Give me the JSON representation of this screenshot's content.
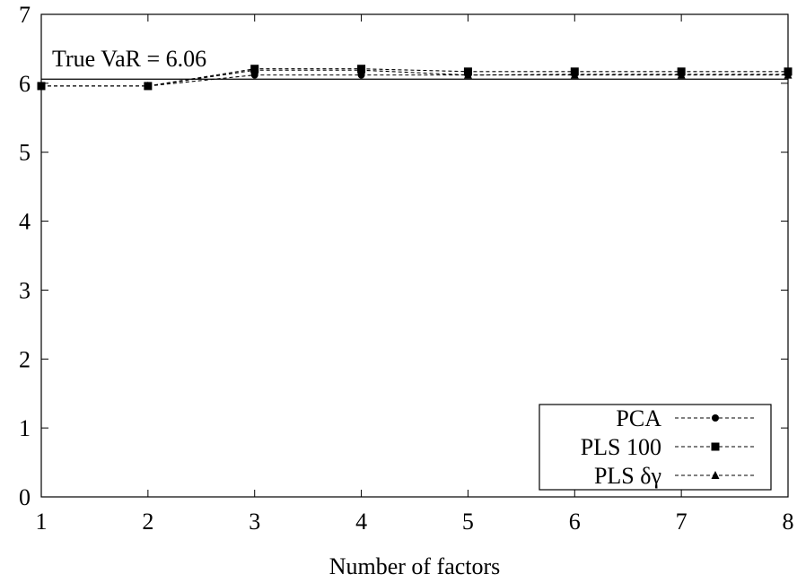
{
  "chart_data": {
    "type": "line",
    "xlabel": "Number of factors",
    "ylabel": "",
    "xlim": [
      1,
      8
    ],
    "ylim": [
      0,
      7
    ],
    "x_ticks": [
      "1",
      "2",
      "3",
      "4",
      "5",
      "6",
      "7",
      "8"
    ],
    "y_ticks": [
      "0",
      "1",
      "2",
      "3",
      "4",
      "5",
      "6",
      "7"
    ],
    "grid": false,
    "legend_position": "bottom-right",
    "annotation": "True VaR = 6.06",
    "reference_line": 6.06,
    "x": [
      1,
      2,
      3,
      4,
      5,
      6,
      7,
      8
    ],
    "series": [
      {
        "name": "PCA",
        "marker": "circle",
        "values": [
          5.96,
          5.96,
          6.12,
          6.12,
          6.12,
          6.13,
          6.13,
          6.13
        ]
      },
      {
        "name": "PLS 100",
        "marker": "square",
        "values": [
          5.96,
          5.96,
          6.21,
          6.21,
          6.17,
          6.17,
          6.17,
          6.17
        ]
      },
      {
        "name": "PLS δγ",
        "marker": "triangle",
        "values": [
          5.96,
          5.96,
          6.19,
          6.19,
          6.12,
          6.12,
          6.12,
          6.12
        ]
      }
    ],
    "colors": {
      "line": "#000000",
      "axis": "#000000",
      "background": "#ffffff"
    }
  }
}
